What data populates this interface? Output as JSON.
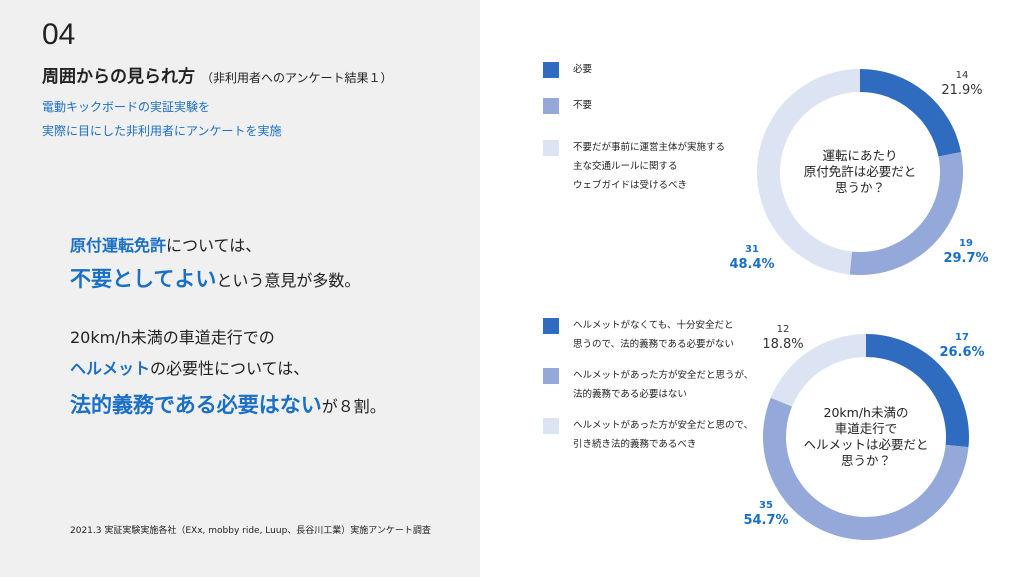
{
  "slide": {
    "number": "04",
    "title": "周囲からの見られ方",
    "subtitle": "（非利用者へのアンケート結果１）",
    "lead": [
      "電動キックボードの実証実験を",
      "実際に目にした非利用者にアンケートを実施"
    ],
    "summary": [
      [
        "原付運転免許",
        "については、"
      ],
      [
        "不要としてよい",
        "という意見が多数。"
      ],
      [
        "20km/h未満の車道走行での"
      ],
      [
        "ヘルメット",
        "の必要性については、"
      ],
      [
        "法的義務である必要はない",
        "が８割。"
      ]
    ],
    "source": "2021.3 実証実験実施各社（EXx, mobby ride, Luup、長谷川工業）実施アンケート調査"
  },
  "chart_data": [
    {
      "type": "donut",
      "title": "運転にあたり\n原付免許は必要だと\n思うか？",
      "categories": [
        "必要",
        "不要",
        "不要だが事前に運営主体が実施する\n主な交通ルールに関する\nウェブガイドは受けるべき"
      ],
      "colors": [
        "#2f6cbf",
        "#94a9da",
        "#dce3f2"
      ],
      "counts": [
        14,
        19,
        31
      ],
      "values": [
        21.9,
        29.7,
        48.4
      ],
      "value_labels": [
        "21.9%",
        "29.7%",
        "48.4%"
      ],
      "label_colors": [
        "#333333",
        "#1a6fc6",
        "#1a6fc6"
      ]
    },
    {
      "type": "donut",
      "title": "20km/h未満の\n車道走行で\nヘルメットは必要だと\n思うか？",
      "categories": [
        "ヘルメットがなくても、十分安全だと\n思うので、法的義務である必要がない",
        "ヘルメットがあった方が安全だと思うが、\n法的義務である必要はない",
        "ヘルメットがあった方が安全だと思ので、\n引き続き法的義務であるべき"
      ],
      "colors": [
        "#2f6cbf",
        "#94a9da",
        "#dce3f2"
      ],
      "counts": [
        17,
        35,
        12
      ],
      "values": [
        26.6,
        54.7,
        18.8
      ],
      "value_labels": [
        "26.6%",
        "54.7%",
        "18.8%"
      ],
      "label_colors": [
        "#1a6fc6",
        "#1a6fc6",
        "#333333"
      ]
    }
  ]
}
